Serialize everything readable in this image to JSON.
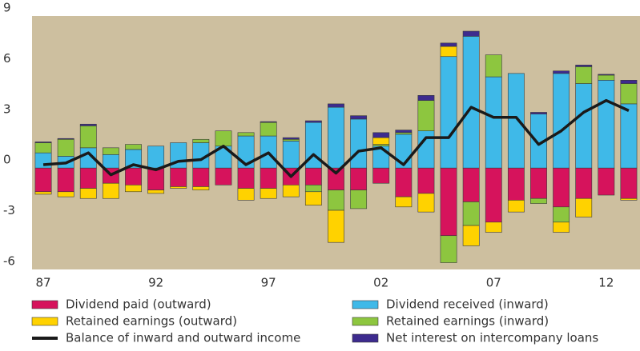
{
  "chart_data": {
    "type": "bar",
    "categories": [
      "87",
      null,
      null,
      null,
      null,
      "92",
      null,
      null,
      null,
      null,
      "97",
      null,
      null,
      null,
      null,
      "02",
      null,
      null,
      null,
      null,
      "07",
      null,
      null,
      null,
      null,
      "12",
      null
    ],
    "series": [
      {
        "name": "Dividend paid (outward)",
        "color": "#d6135c",
        "values": [
          -1.4,
          -1.4,
          -1.2,
          -0.9,
          -1.0,
          -1.3,
          -1.1,
          -1.1,
          -1.0,
          -1.2,
          -1.2,
          -1.0,
          -1.0,
          -1.3,
          -1.3,
          -0.9,
          -1.7,
          -1.5,
          -4.0,
          -2.0,
          -3.2,
          -1.9,
          -1.8,
          -2.3,
          -1.8,
          -1.6,
          -1.8
        ]
      },
      {
        "name": "Dividend received (inward)",
        "color": "#3fb9e8",
        "values": [
          0.9,
          0.7,
          1.2,
          0.8,
          1.1,
          1.3,
          1.5,
          1.5,
          1.3,
          1.9,
          1.9,
          1.6,
          2.7,
          3.6,
          2.9,
          1.3,
          2.0,
          2.2,
          6.6,
          7.8,
          5.4,
          5.6,
          3.2,
          5.6,
          5.0,
          5.2,
          3.8
        ]
      },
      {
        "name": "Retained earnings (outward)",
        "color": "#ffd200",
        "values": [
          -0.15,
          -0.3,
          -0.6,
          -0.9,
          -0.4,
          -0.2,
          -0.1,
          -0.2,
          0,
          -0.7,
          -0.6,
          -0.7,
          -0.8,
          -1.9,
          0,
          0.4,
          -0.6,
          -1.1,
          0.6,
          -1.2,
          -0.6,
          -0.7,
          0,
          -0.6,
          -1.1,
          0,
          -0.1
        ]
      },
      {
        "name": "Retained earnings (inward)",
        "color": "#8dc63f",
        "values": [
          0.6,
          1.0,
          1.3,
          0.4,
          0.3,
          0,
          0,
          0.2,
          0.9,
          0.2,
          0.8,
          0.1,
          -0.4,
          -1.2,
          -1.1,
          0.1,
          0.1,
          1.8,
          -1.6,
          -1.4,
          1.3,
          0,
          -0.3,
          -0.9,
          1.0,
          0.3,
          1.2
        ]
      },
      {
        "name": "Balance of inward and outward income",
        "type": "line",
        "color": "#1a1a1a",
        "values": [
          0.2,
          0.3,
          0.9,
          -0.4,
          0.2,
          -0.1,
          0.4,
          0.5,
          1.3,
          0.2,
          0.9,
          -0.5,
          0.8,
          -0.3,
          1.0,
          1.2,
          0.2,
          1.8,
          1.8,
          3.6,
          3.0,
          3.0,
          1.4,
          2.2,
          3.3,
          4.0,
          3.4
        ]
      },
      {
        "name": "Net interest on intercompany loans",
        "color": "#3d2b8e",
        "values": [
          0.05,
          0.05,
          0.1,
          0,
          0,
          0,
          0,
          0,
          0,
          0,
          0.05,
          0.1,
          0.1,
          0.2,
          0.2,
          0.3,
          0.15,
          0.3,
          0.2,
          0.3,
          0,
          0,
          0.1,
          0.15,
          0.1,
          0.05,
          0.2
        ]
      }
    ],
    "ylim": [
      -6,
      9
    ],
    "yticks": [
      9,
      6,
      3,
      0,
      -3,
      -6
    ],
    "background": "#cdbf9f"
  }
}
